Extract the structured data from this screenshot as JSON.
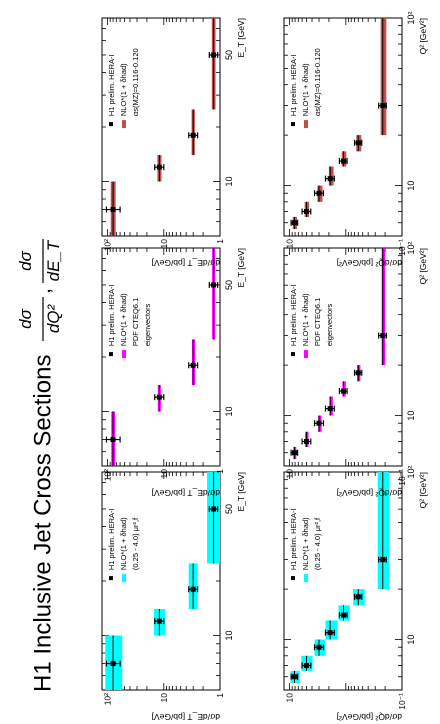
{
  "title": {
    "main": "H1 Inclusive Jet Cross Sections",
    "sep": ",",
    "f1_num": "dσ",
    "f1_den": "dQ²",
    "f2_num": "dσ",
    "f2_den": "dE_T"
  },
  "colors": {
    "cyan": "#00ffff",
    "magenta": "#ff00ff",
    "red": "#c0504d",
    "data": "#000000"
  },
  "chart_data": [
    {
      "id": "q2-scale",
      "type": "scatter",
      "column": "left",
      "row": "top",
      "variable": "Q2",
      "xlabel": "Q² [GeV²]",
      "ylabel": "dσ/dQ² [pb/GeV²]",
      "xlim": [
        5,
        100
      ],
      "ylim_log": [
        -1.0,
        1.1
      ],
      "xticks": [
        {
          "v": 10,
          "label": "10"
        },
        {
          "v": 100,
          "label": "10²"
        }
      ],
      "yticks": [
        {
          "v": 0.1,
          "label": "10⁻¹"
        },
        {
          "v": 10,
          "label": "10"
        }
      ],
      "band_color": "cyan",
      "legend": [
        "H1 prelim. HERA-I",
        "NLO*(1 + δhad)",
        "(0.25 - 4.0) μr²,f"
      ],
      "points": [
        {
          "x": 6.0,
          "y": 8.2,
          "el": 1.0,
          "eh": 1.2,
          "xlo": 5.5,
          "xhi": 6.5
        },
        {
          "x": 7.0,
          "y": 5.0,
          "el": 0.8,
          "eh": 1.0,
          "xlo": 6.5,
          "xhi": 8.0
        },
        {
          "x": 9.0,
          "y": 3.0,
          "el": 0.5,
          "eh": 0.6,
          "xlo": 8.0,
          "xhi": 10.0
        },
        {
          "x": 11.0,
          "y": 1.9,
          "el": 0.3,
          "eh": 0.4,
          "xlo": 10.0,
          "xhi": 13.0
        },
        {
          "x": 14.0,
          "y": 1.1,
          "el": 0.15,
          "eh": 0.2,
          "xlo": 13.0,
          "xhi": 16.0
        },
        {
          "x": 18.0,
          "y": 0.6,
          "el": 0.08,
          "eh": 0.1,
          "xlo": 16.0,
          "xhi": 20.0
        },
        {
          "x": 30.0,
          "y": 0.22,
          "el": 0.03,
          "eh": 0.04,
          "xlo": 20.0,
          "xhi": 100.0
        }
      ],
      "band": [
        {
          "lo": 6.6,
          "hi": 9.6
        },
        {
          "lo": 3.9,
          "hi": 6.2
        },
        {
          "lo": 2.3,
          "hi": 3.6
        },
        {
          "lo": 1.4,
          "hi": 2.3
        },
        {
          "lo": 0.85,
          "hi": 1.35
        },
        {
          "lo": 0.46,
          "hi": 0.74
        },
        {
          "lo": 0.17,
          "hi": 0.27
        }
      ]
    },
    {
      "id": "q2-pdf",
      "type": "scatter",
      "column": "middle",
      "row": "top",
      "variable": "Q2",
      "xlabel": "Q² [GeV²]",
      "ylabel": "dσ/dQ² [pb/GeV²]",
      "xlim": [
        5,
        100
      ],
      "ylim_log": [
        -1.0,
        1.1
      ],
      "xticks": [
        {
          "v": 10,
          "label": "10"
        },
        {
          "v": 100,
          "label": "10²"
        }
      ],
      "yticks": [
        {
          "v": 0.1,
          "label": "10⁻¹"
        },
        {
          "v": 10,
          "label": "10"
        }
      ],
      "band_color": "magenta",
      "legend": [
        "H1 prelim. HERA-I",
        "NLO*(1 + δhad)",
        "PDF CTEQ6.1",
        "eigenvectors"
      ],
      "points": [
        {
          "x": 6.0,
          "y": 8.2,
          "el": 1.0,
          "eh": 1.2,
          "xlo": 5.5,
          "xhi": 6.5
        },
        {
          "x": 7.0,
          "y": 5.0,
          "el": 0.8,
          "eh": 1.0,
          "xlo": 6.5,
          "xhi": 8.0
        },
        {
          "x": 9.0,
          "y": 3.0,
          "el": 0.5,
          "eh": 0.6,
          "xlo": 8.0,
          "xhi": 10.0
        },
        {
          "x": 11.0,
          "y": 1.9,
          "el": 0.3,
          "eh": 0.4,
          "xlo": 10.0,
          "xhi": 13.0
        },
        {
          "x": 14.0,
          "y": 1.1,
          "el": 0.15,
          "eh": 0.2,
          "xlo": 13.0,
          "xhi": 16.0
        },
        {
          "x": 18.0,
          "y": 0.6,
          "el": 0.08,
          "eh": 0.1,
          "xlo": 16.0,
          "xhi": 20.0
        },
        {
          "x": 30.0,
          "y": 0.22,
          "el": 0.03,
          "eh": 0.04,
          "xlo": 20.0,
          "xhi": 100.0
        }
      ],
      "band": [
        {
          "lo": 7.6,
          "hi": 8.6
        },
        {
          "lo": 4.6,
          "hi": 5.3
        },
        {
          "lo": 2.7,
          "hi": 3.1
        },
        {
          "lo": 1.7,
          "hi": 1.95
        },
        {
          "lo": 1.0,
          "hi": 1.15
        },
        {
          "lo": 0.55,
          "hi": 0.63
        },
        {
          "lo": 0.2,
          "hi": 0.23
        }
      ]
    },
    {
      "id": "q2-alphas",
      "type": "scatter",
      "column": "right",
      "row": "top",
      "variable": "Q2",
      "xlabel": "Q² [GeV²]",
      "ylabel": "dσ/dQ² [pb/GeV²]",
      "xlim": [
        5,
        100
      ],
      "ylim_log": [
        -1.0,
        1.1
      ],
      "xticks": [
        {
          "v": 10,
          "label": "10"
        },
        {
          "v": 100,
          "label": "10²"
        }
      ],
      "yticks": [
        {
          "v": 0.1,
          "label": "10⁻¹"
        },
        {
          "v": 10,
          "label": "10"
        }
      ],
      "band_color": "red",
      "legend": [
        "H1 prelim. HERA-I",
        "NLO*(1 + δhad)",
        "αs(MZ)=0.116-0.120"
      ],
      "points": [
        {
          "x": 6.0,
          "y": 8.2,
          "el": 1.0,
          "eh": 1.2,
          "xlo": 5.5,
          "xhi": 6.5
        },
        {
          "x": 7.0,
          "y": 5.0,
          "el": 0.8,
          "eh": 1.0,
          "xlo": 6.5,
          "xhi": 8.0
        },
        {
          "x": 9.0,
          "y": 3.0,
          "el": 0.5,
          "eh": 0.6,
          "xlo": 8.0,
          "xhi": 10.0
        },
        {
          "x": 11.0,
          "y": 1.9,
          "el": 0.3,
          "eh": 0.4,
          "xlo": 10.0,
          "xhi": 13.0
        },
        {
          "x": 14.0,
          "y": 1.1,
          "el": 0.15,
          "eh": 0.2,
          "xlo": 13.0,
          "xhi": 16.0
        },
        {
          "x": 18.0,
          "y": 0.6,
          "el": 0.08,
          "eh": 0.1,
          "xlo": 16.0,
          "xhi": 20.0
        },
        {
          "x": 30.0,
          "y": 0.22,
          "el": 0.03,
          "eh": 0.04,
          "xlo": 20.0,
          "xhi": 100.0
        }
      ],
      "band": [
        {
          "lo": 7.4,
          "hi": 8.8
        },
        {
          "lo": 4.5,
          "hi": 5.4
        },
        {
          "lo": 2.6,
          "hi": 3.2
        },
        {
          "lo": 1.65,
          "hi": 2.0
        },
        {
          "lo": 0.98,
          "hi": 1.18
        },
        {
          "lo": 0.53,
          "hi": 0.65
        },
        {
          "lo": 0.19,
          "hi": 0.24
        }
      ]
    },
    {
      "id": "et-scale",
      "type": "scatter",
      "column": "left",
      "row": "bottom",
      "variable": "ET",
      "xlabel": "E_T [GeV]",
      "ylabel": "dσ/dE_T [pb/GeV]",
      "xlim": [
        5,
        80
      ],
      "ylim_log": [
        0.0,
        2.1
      ],
      "xticks": [
        {
          "v": 10,
          "label": "10"
        },
        {
          "v": 50,
          "label": "50"
        }
      ],
      "yticks": [
        {
          "v": 1,
          "label": "1"
        },
        {
          "v": 10,
          "label": "10"
        },
        {
          "v": 100,
          "label": "10²"
        }
      ],
      "band_color": "cyan",
      "legend": [
        "H1 prelim. HERA-I",
        "NLO*(1 + δhad)",
        "(0.25 - 4.0) μr²,f"
      ],
      "points": [
        {
          "x": 7.0,
          "y": 80,
          "el": 20,
          "eh": 25,
          "xlo": 5.0,
          "xhi": 10.0
        },
        {
          "x": 12.0,
          "y": 12,
          "el": 2,
          "eh": 2.5,
          "xlo": 10.0,
          "xhi": 14.0
        },
        {
          "x": 18.0,
          "y": 3.0,
          "el": 0.5,
          "eh": 0.6,
          "xlo": 14.0,
          "xhi": 25.0
        },
        {
          "x": 50.0,
          "y": 1.3,
          "el": 0.2,
          "eh": 0.25,
          "xlo": 25.0,
          "xhi": 80.0
        }
      ],
      "band": [
        {
          "lo": 55,
          "hi": 110
        },
        {
          "lo": 9.5,
          "hi": 15
        },
        {
          "lo": 2.5,
          "hi": 3.6
        },
        {
          "lo": 1.0,
          "hi": 1.7
        }
      ]
    },
    {
      "id": "et-pdf",
      "type": "scatter",
      "column": "middle",
      "row": "bottom",
      "variable": "ET",
      "xlabel": "E_T [GeV]",
      "ylabel": "dσ/dE_T [pb/GeV]",
      "xlim": [
        5,
        80
      ],
      "ylim_log": [
        0.0,
        2.1
      ],
      "xticks": [
        {
          "v": 10,
          "label": "10"
        },
        {
          "v": 50,
          "label": "50"
        }
      ],
      "yticks": [
        {
          "v": 1,
          "label": "1"
        },
        {
          "v": 10,
          "label": "10"
        },
        {
          "v": 100,
          "label": "10²"
        }
      ],
      "band_color": "magenta",
      "legend": [
        "H1 prelim. HERA-I",
        "NLO*(1 + δhad)",
        "PDF CTEQ6.1",
        "eigenvectors"
      ],
      "points": [
        {
          "x": 7.0,
          "y": 80,
          "el": 20,
          "eh": 25,
          "xlo": 5.0,
          "xhi": 10.0
        },
        {
          "x": 12.0,
          "y": 12,
          "el": 2,
          "eh": 2.5,
          "xlo": 10.0,
          "xhi": 14.0
        },
        {
          "x": 18.0,
          "y": 3.0,
          "el": 0.5,
          "eh": 0.6,
          "xlo": 14.0,
          "xhi": 25.0
        },
        {
          "x": 50.0,
          "y": 1.3,
          "el": 0.2,
          "eh": 0.25,
          "xlo": 25.0,
          "xhi": 80.0
        }
      ],
      "band": [
        {
          "lo": 74,
          "hi": 86
        },
        {
          "lo": 11.3,
          "hi": 12.8
        },
        {
          "lo": 2.85,
          "hi": 3.15
        },
        {
          "lo": 1.22,
          "hi": 1.38
        }
      ]
    },
    {
      "id": "et-alphas",
      "type": "scatter",
      "column": "right",
      "row": "bottom",
      "variable": "ET",
      "xlabel": "E_T [GeV]",
      "ylabel": "dσ/dE_T [pb/GeV]",
      "xlim": [
        5,
        80
      ],
      "ylim_log": [
        0.0,
        2.1
      ],
      "xticks": [
        {
          "v": 10,
          "label": "10"
        },
        {
          "v": 50,
          "label": "50"
        }
      ],
      "yticks": [
        {
          "v": 1,
          "label": "1"
        },
        {
          "v": 10,
          "label": "10"
        },
        {
          "v": 100,
          "label": "10²"
        }
      ],
      "band_color": "red",
      "legend": [
        "H1 prelim. HERA-I",
        "NLO*(1 + δhad)",
        "αs(MZ)=0.116-0.120"
      ],
      "points": [
        {
          "x": 7.0,
          "y": 80,
          "el": 20,
          "eh": 25,
          "xlo": 5.0,
          "xhi": 10.0
        },
        {
          "x": 12.0,
          "y": 12,
          "el": 2,
          "eh": 2.5,
          "xlo": 10.0,
          "xhi": 14.0
        },
        {
          "x": 18.0,
          "y": 3.0,
          "el": 0.5,
          "eh": 0.6,
          "xlo": 14.0,
          "xhi": 25.0
        },
        {
          "x": 50.0,
          "y": 1.3,
          "el": 0.2,
          "eh": 0.25,
          "xlo": 25.0,
          "xhi": 80.0
        }
      ],
      "band": [
        {
          "lo": 72,
          "hi": 88
        },
        {
          "lo": 11,
          "hi": 13
        },
        {
          "lo": 2.8,
          "hi": 3.2
        },
        {
          "lo": 1.2,
          "hi": 1.4
        }
      ]
    }
  ]
}
